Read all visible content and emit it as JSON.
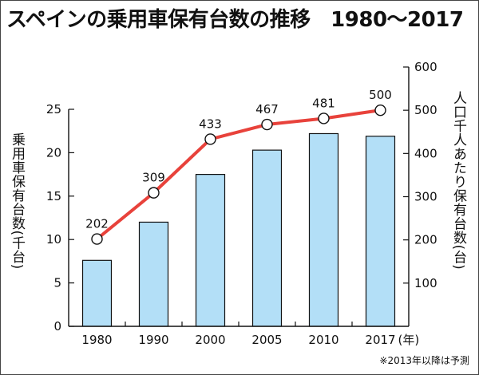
{
  "title": "スペインの乗用車保有台数の推移　1980～2017",
  "left_axis_label": "乗用車保有台数(千台)",
  "right_axis_label": "人口千人あたり保有台数(台)",
  "footnote": "※2013年以降は予測",
  "x_unit": "(年)",
  "colors": {
    "bar": "#b3dff7",
    "bar_stroke": "#111111",
    "line": "#e8423b",
    "marker_fill": "#ffffff"
  },
  "chart_data": {
    "type": "bar",
    "categories": [
      "1980",
      "1990",
      "2000",
      "2005",
      "2010",
      "2017"
    ],
    "series": [
      {
        "name": "乗用車保有台数(千台)",
        "type": "bar",
        "axis": "left",
        "values": [
          7.6,
          12.0,
          17.5,
          20.3,
          22.2,
          21.9
        ]
      },
      {
        "name": "人口千人あたり保有台数(台)",
        "type": "line",
        "axis": "right",
        "values": [
          202,
          309,
          433,
          467,
          481,
          500
        ],
        "data_labels": [
          "202",
          "309",
          "433",
          "467",
          "481",
          "500"
        ]
      }
    ],
    "y_left": {
      "range": [
        0,
        25
      ],
      "ticks": [
        "0",
        "5",
        "10",
        "15",
        "20",
        "25"
      ]
    },
    "y_right": {
      "range": [
        0,
        600
      ],
      "ticks": [
        "100",
        "200",
        "300",
        "400",
        "500",
        "600"
      ]
    },
    "grid": false,
    "legend": "none"
  }
}
